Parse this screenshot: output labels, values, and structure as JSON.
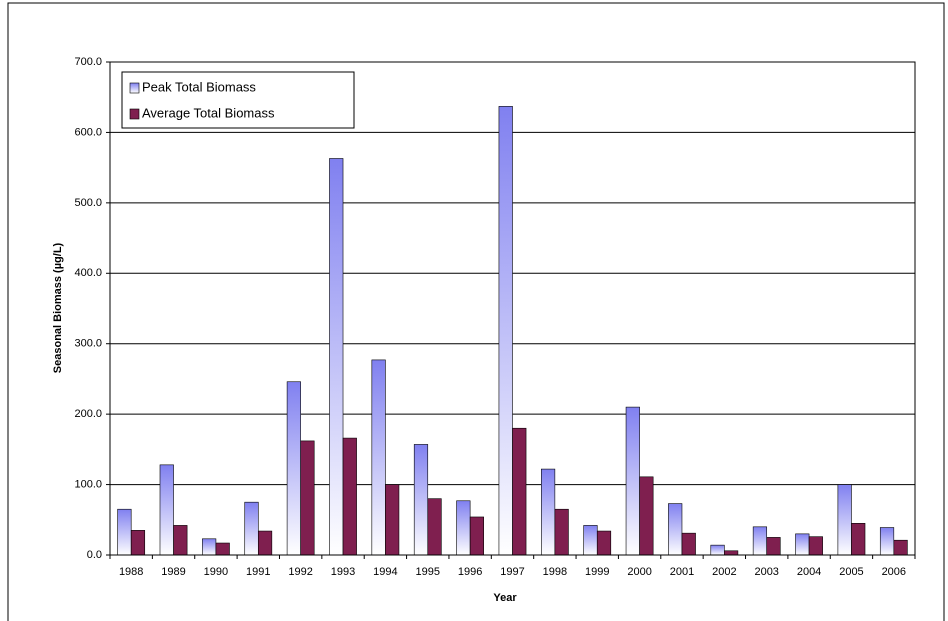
{
  "chart_data": {
    "type": "bar",
    "x_label": "Year",
    "y_label": "Seasonal Biomass (µg/L)",
    "categories": [
      "1988",
      "1989",
      "1990",
      "1991",
      "1992",
      "1993",
      "1994",
      "1995",
      "1996",
      "1997",
      "1998",
      "1999",
      "2000",
      "2001",
      "2002",
      "2003",
      "2004",
      "2005",
      "2006"
    ],
    "series": [
      {
        "name": "Peak Total Biomass",
        "color": "#8080f0",
        "values": [
          65,
          128,
          23,
          75,
          246,
          563,
          277,
          157,
          77,
          637,
          122,
          42,
          210,
          73,
          14,
          40,
          30,
          100,
          39
        ]
      },
      {
        "name": "Average Total Biomass",
        "color": "#7f1f4f",
        "values": [
          35,
          42,
          17,
          34,
          162,
          166,
          100,
          80,
          54,
          180,
          65,
          34,
          111,
          31,
          6,
          25,
          26,
          45,
          21
        ]
      }
    ],
    "ylim": [
      0,
      700
    ],
    "yticks": [
      {
        "value": 0,
        "label": "0.0"
      },
      {
        "value": 100,
        "label": "100.0"
      },
      {
        "value": 200,
        "label": "200.0"
      },
      {
        "value": 300,
        "label": "300.0"
      },
      {
        "value": 400,
        "label": "400.0"
      },
      {
        "value": 500,
        "label": "500.0"
      },
      {
        "value": 600,
        "label": "600.0"
      },
      {
        "value": 700,
        "label": "700.0"
      }
    ],
    "grid": true,
    "legend": "top-left"
  }
}
